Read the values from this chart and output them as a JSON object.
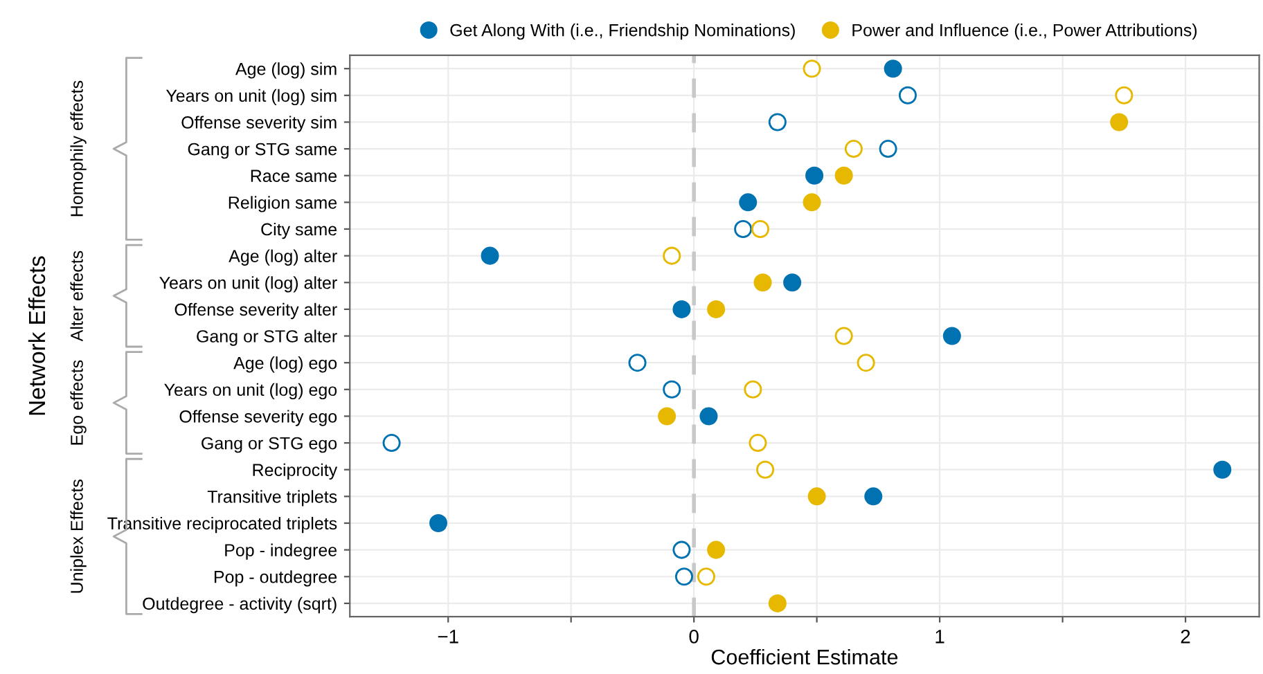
{
  "chart_data": {
    "type": "scatter",
    "xlabel": "Coefficient Estimate",
    "ylabel": "Network Effects",
    "orientation": "horizontal",
    "categories": [
      "Age (log) sim",
      "Years on unit (log) sim",
      "Offense severity sim",
      "Gang or STG same",
      "Race same",
      "Religion same",
      "City same",
      "Age (log) alter",
      "Years on unit (log) alter",
      "Offense severity alter",
      "Gang or STG alter",
      "Age (log) ego",
      "Years on unit (log) ego",
      "Offense severity ego",
      "Gang or STG ego",
      "Reciprocity",
      "Transitive triplets",
      "Transitive reciprocated triplets",
      "Pop - indegree",
      "Pop - outdegree",
      "Outdegree - activity (sqrt)"
    ],
    "series": [
      {
        "name": "Get Along With (i.e., Friendship Nominations)",
        "color": "#0072b2",
        "values": [
          0.81,
          null,
          null,
          null,
          0.49,
          0.22,
          null,
          -0.83,
          0.4,
          -0.05,
          1.05,
          null,
          null,
          0.06,
          null,
          2.15,
          0.73,
          -1.04,
          null,
          null,
          null
        ]
      },
      {
        "color": "#0072b2",
        "values": [
          null,
          0.87,
          0.34,
          0.79,
          null,
          null,
          0.2,
          null,
          null,
          null,
          null,
          -0.23,
          -0.09,
          null,
          -1.23,
          null,
          null,
          null,
          -0.05,
          -0.04,
          null
        ]
      },
      {
        "name": "Power and Influence (i.e., Power Attributions)",
        "color": "#e6b800",
        "values": [
          null,
          null,
          1.73,
          null,
          0.61,
          0.48,
          null,
          null,
          0.28,
          0.09,
          null,
          null,
          null,
          -0.11,
          null,
          null,
          0.5,
          null,
          0.09,
          null,
          0.34
        ]
      },
      {
        "color": "#e6b800",
        "values": [
          0.48,
          1.75,
          null,
          0.65,
          null,
          null,
          0.27,
          -0.09,
          null,
          null,
          0.61,
          0.7,
          0.24,
          null,
          0.26,
          0.29,
          null,
          null,
          null,
          0.05,
          null
        ]
      }
    ],
    "xlim": [
      -1.4,
      2.3
    ],
    "xticks": [
      {
        "value": -1,
        "label": "−1"
      },
      {
        "value": -0.5,
        "label": null
      },
      0,
      {
        "value": 0.5,
        "label": null
      },
      1,
      {
        "value": 1.5,
        "label": null
      },
      2
    ],
    "ref_lines": [
      {
        "axis": "x",
        "value": 0,
        "color": "#c8c8c8",
        "line_style": "dashed"
      }
    ],
    "annotations": [
      "Homophily effects",
      "Alter effects",
      "Ego effects",
      "Uniplex Effects"
    ],
    "grid": true,
    "legend": "top",
    "marker": "circle"
  }
}
